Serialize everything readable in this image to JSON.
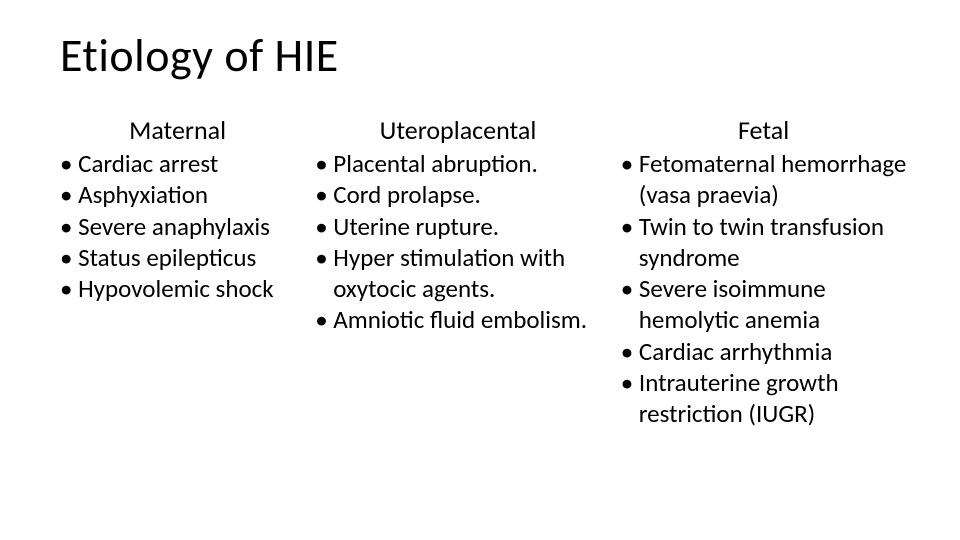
{
  "type": "slide",
  "background_color": "#ffffff",
  "text_color": "#000000",
  "font_family": "Calibri",
  "title": {
    "text": "Etiology of HIE",
    "fontsize": 46,
    "fontweight": "normal"
  },
  "columns": [
    {
      "heading": "Maternal",
      "heading_fontsize": 26,
      "item_fontsize": 25,
      "items": [
        "Cardiac arrest",
        "Asphyxiation",
        "Severe anaphylaxis",
        "Status epilepticus",
        "Hypovolemic shock"
      ]
    },
    {
      "heading": "Uteroplacental",
      "heading_fontsize": 26,
      "item_fontsize": 25,
      "items": [
        "Placental abruption.",
        "Cord prolapse.",
        "Uterine rupture.",
        "Hyper stimulation with oxytocic agents.",
        "Amniotic fluid embolism."
      ]
    },
    {
      "heading": "Fetal",
      "heading_fontsize": 26,
      "item_fontsize": 25,
      "items": [
        "Fetomaternal hemorrhage (vasa praevia)",
        "Twin to twin transfusion syndrome",
        "Severe isoimmune hemolytic anemia",
        "Cardiac arrhythmia",
        "Intrauterine growth restriction (IUGR)"
      ]
    }
  ]
}
